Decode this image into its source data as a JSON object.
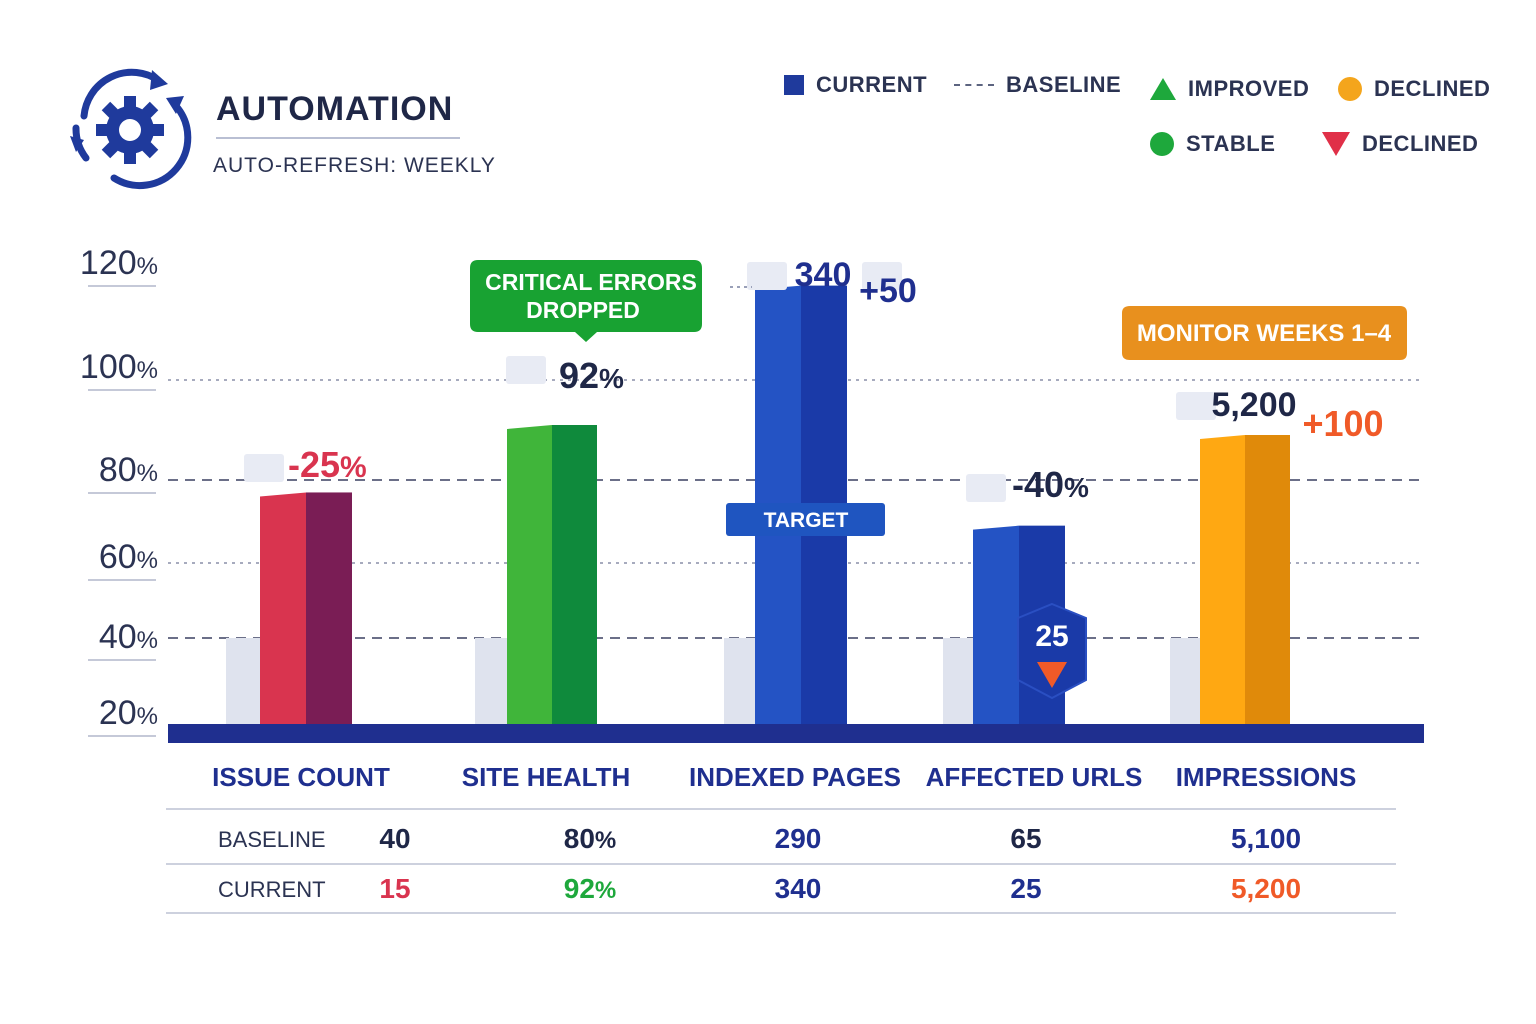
{
  "header": {
    "title": "AUTOMATION",
    "subtitle": "AUTO-REFRESH: WEEKLY"
  },
  "legend": [
    {
      "label": "CURRENT",
      "symbol": "square",
      "color": "#1f3a9c"
    },
    {
      "label": "BASELINE",
      "symbol": "dash",
      "color": "#5c6480"
    },
    {
      "label": "IMPROVED",
      "symbol": "triangle-up",
      "color": "#1ea83c"
    },
    {
      "label": "DECLINED",
      "symbol": "circle",
      "color": "#f4a51c"
    },
    {
      "label": "STABLE",
      "symbol": "circle",
      "color": "#1ea83c"
    },
    {
      "label": "DECLINED",
      "symbol": "triangle-down",
      "color": "#e03048"
    }
  ],
  "colors": {
    "axis_band": "#1f2f8f",
    "baseline_bar": "#dfe3ee",
    "gridline": "#6b6f88",
    "red_front": "#d9344f",
    "red_side": "#7a1d55",
    "green_front": "#40b53a",
    "green_side": "#0f8a3c",
    "blue_front": "#2453c4",
    "blue_side": "#1a3aa8",
    "orange_front": "#ffa812",
    "orange_side": "#e08a0a",
    "table_red": "#d9344f",
    "table_green": "#1ea83c",
    "table_navy": "#1f2f8f",
    "table_dark": "#1f2747",
    "table_orange": "#f05a28"
  },
  "chart_data": {
    "type": "bar",
    "title": "AUTOMATION",
    "y_ticks": [
      "120%",
      "100%",
      "80%",
      "60%",
      "40%",
      "20%"
    ],
    "ylim": [
      20,
      120
    ],
    "reference_lines": [
      100,
      80,
      60,
      40
    ],
    "categories": [
      "ISSUE COUNT",
      "SITE HEALTH",
      "INDEXED PAGES",
      "AFFECTED URLS",
      "IMPRESSIONS"
    ],
    "series": [
      {
        "name": "CURRENT",
        "values": [
          77,
          91,
          116,
          69,
          89
        ]
      },
      {
        "name": "BASELINE",
        "values": [
          40,
          40,
          40,
          40,
          40
        ]
      }
    ],
    "data_labels": [
      {
        "category": "ISSUE COUNT",
        "label": "-25%",
        "delta": null
      },
      {
        "category": "SITE HEALTH",
        "label": "92%",
        "delta": null
      },
      {
        "category": "INDEXED PAGES",
        "label": "340",
        "delta": "+50"
      },
      {
        "category": "AFFECTED URLS",
        "label": "-40%",
        "delta": null
      },
      {
        "category": "IMPRESSIONS",
        "label": "5,200",
        "delta": "+100"
      }
    ],
    "annotations": {
      "critical": "CRITICAL ERRORS DROPPED",
      "monitor": "MONITOR WEEKS 1–4",
      "target": "TARGET",
      "badge": "25"
    },
    "table": {
      "rows": [
        {
          "label": "BASELINE",
          "values": [
            "40",
            "80%",
            "290",
            "65",
            "5,100"
          ]
        },
        {
          "label": "CURRENT",
          "values": [
            "15",
            "92%",
            "340",
            "25",
            "5,200"
          ]
        }
      ]
    }
  }
}
